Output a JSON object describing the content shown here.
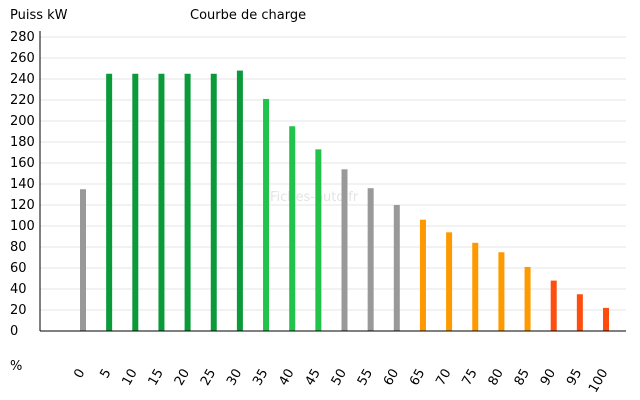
{
  "chart_data": {
    "type": "bar",
    "title": "Courbe de charge",
    "ylabel": "Puiss kW",
    "xlabel": "%",
    "ylim": [
      0,
      280
    ],
    "yticks": [
      0,
      20,
      40,
      60,
      80,
      100,
      120,
      140,
      160,
      180,
      200,
      220,
      240,
      260,
      280
    ],
    "grid": true,
    "watermark": "Fiches-auto.fr",
    "categories": [
      "0",
      "5",
      "10",
      "15",
      "20",
      "25",
      "30",
      "35",
      "40",
      "45",
      "50",
      "55",
      "60",
      "65",
      "70",
      "75",
      "80",
      "85",
      "90",
      "95",
      "100"
    ],
    "values": [
      135,
      245,
      245,
      245,
      245,
      245,
      248,
      221,
      195,
      173,
      154,
      136,
      120,
      106,
      94,
      84,
      75,
      61,
      48,
      35,
      22
    ],
    "colors": [
      "#999999",
      "#0a9a3a",
      "#0a9a3a",
      "#0a9a3a",
      "#0a9a3a",
      "#0a9a3a",
      "#0a9a3a",
      "#22c34a",
      "#22c34a",
      "#22c34a",
      "#999999",
      "#999999",
      "#999999",
      "#ff9900",
      "#ff9900",
      "#ff9900",
      "#ff9900",
      "#ff9900",
      "#ff4d0f",
      "#ff4d0f",
      "#ff4d0f"
    ]
  }
}
